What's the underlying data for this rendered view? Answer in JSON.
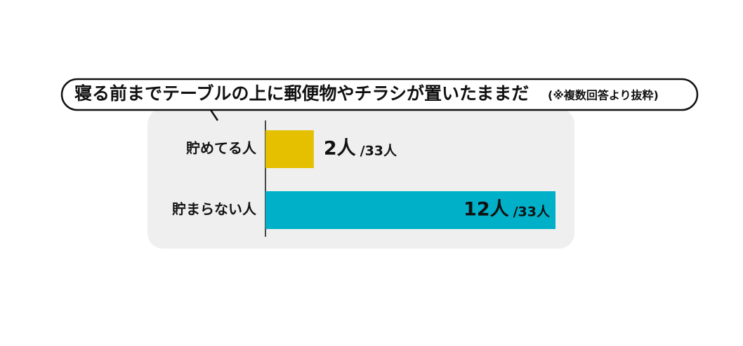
{
  "chart_data": {
    "type": "hbar",
    "title": "寝る前までテーブルの上に郵便物やチラシが置いたままだ",
    "subtitle": "(※複数回答より抜粋)",
    "categories": [
      "貯めてる人",
      "貯まらない人"
    ],
    "values": [
      2,
      12
    ],
    "value_labels": [
      "2人",
      "12人"
    ],
    "total_labels": [
      "/33人",
      "/33人"
    ],
    "colors": [
      "#e5c000",
      "#00b0c9"
    ],
    "xlim": [
      0,
      12
    ]
  }
}
